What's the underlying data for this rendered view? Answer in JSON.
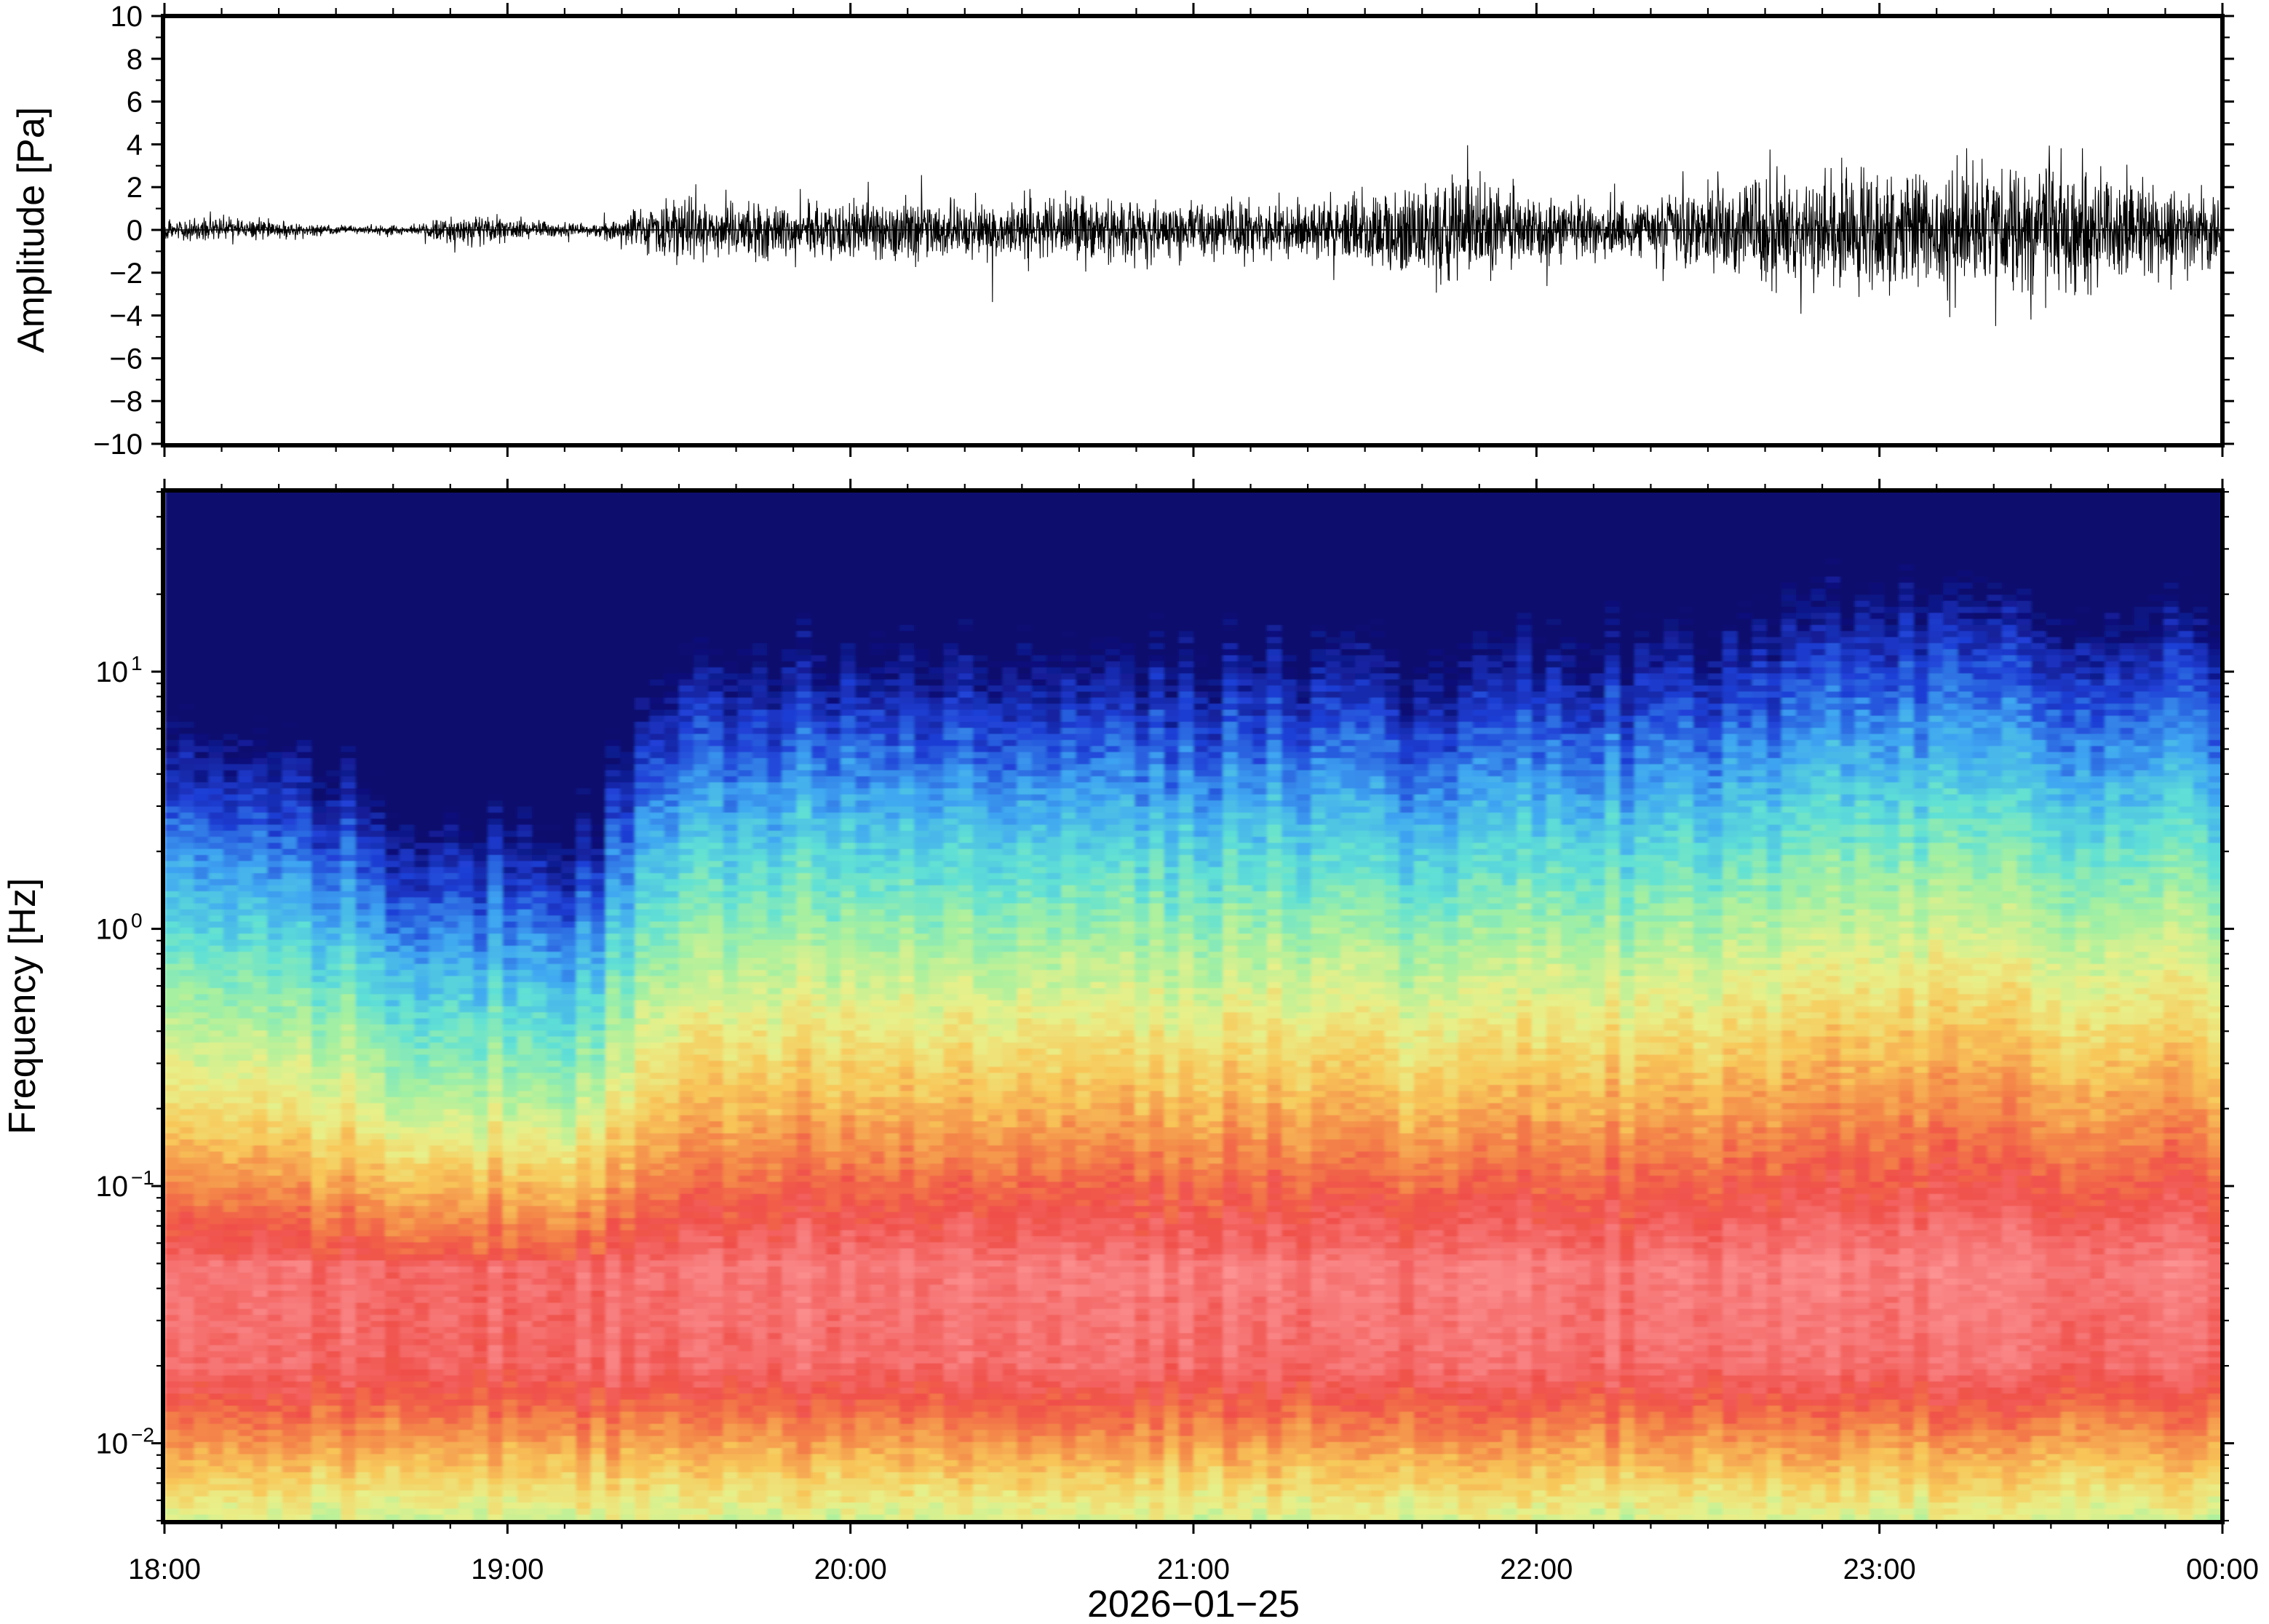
{
  "chart_data": [
    {
      "type": "line",
      "panel": "waveform",
      "title": "",
      "xlabel": "",
      "ylabel": "Amplitude [Pa]",
      "xlim": [
        "18:00",
        "00:00"
      ],
      "ylim": [
        -10,
        10
      ],
      "yticks": [
        10,
        8,
        6,
        4,
        2,
        0,
        -2,
        -4,
        -6,
        -8,
        -10
      ],
      "ytick_labels": [
        "10",
        "8",
        "6",
        "4",
        "2",
        "0",
        "−2",
        "−4",
        "−6",
        "−8",
        "−10"
      ],
      "series": [
        {
          "color": "#000000",
          "x_hours_after_1800": [
            0.0,
            0.25,
            0.5,
            0.75,
            0.85,
            1.0,
            1.25,
            1.42,
            1.5,
            1.75,
            2.0,
            2.25,
            2.5,
            2.75,
            3.0,
            3.25,
            3.5,
            3.75,
            4.0,
            4.25,
            4.5,
            4.75,
            5.0,
            5.25,
            5.5,
            5.75,
            6.0
          ],
          "envelope_pa": [
            0.5,
            0.6,
            0.25,
            0.25,
            0.9,
            0.6,
            0.3,
            1.2,
            1.5,
            1.6,
            1.7,
            1.5,
            1.6,
            1.8,
            1.4,
            1.5,
            2.0,
            2.6,
            1.7,
            1.5,
            2.4,
            2.8,
            3.4,
            3.5,
            3.6,
            2.8,
            2.0
          ],
          "peak_max_pa": 4.3,
          "peak_min_pa": -5.3
        }
      ]
    },
    {
      "type": "heatmap",
      "panel": "spectrogram",
      "title": "",
      "xlabel": "2026−01−25",
      "ylabel": "Frequency [Hz]",
      "xlim": [
        "18:00",
        "00:00"
      ],
      "ylim_hz": [
        0.005,
        50
      ],
      "yscale": "log",
      "xticks": [
        "18:00",
        "19:00",
        "20:00",
        "21:00",
        "22:00",
        "23:00",
        "00:00"
      ],
      "yticks": [
        {
          "base": "10",
          "exp": "1"
        },
        {
          "base": "10",
          "exp": "0"
        },
        {
          "base": "10",
          "exp": "−1"
        },
        {
          "base": "10",
          "exp": "−2"
        }
      ],
      "colormap": [
        "#0a0a6e",
        "#1f3fd6",
        "#3fa6f2",
        "#5fe0d6",
        "#a6f0a0",
        "#e8f08a",
        "#f8c85a",
        "#f48a4a",
        "#f0504a",
        "#f77a7a",
        "#ff9a9a"
      ],
      "time_windows_hours": [
        0.0,
        0.5,
        0.75,
        1.0,
        1.2,
        1.45,
        2.0,
        2.5,
        3.0,
        3.5,
        3.7,
        4.0,
        4.5,
        5.0,
        5.5,
        6.0
      ],
      "relative_level": [
        0.55,
        0.45,
        0.25,
        0.3,
        0.2,
        0.75,
        0.8,
        0.75,
        0.78,
        0.8,
        0.7,
        0.8,
        0.82,
        0.95,
        0.9,
        0.88
      ]
    }
  ]
}
